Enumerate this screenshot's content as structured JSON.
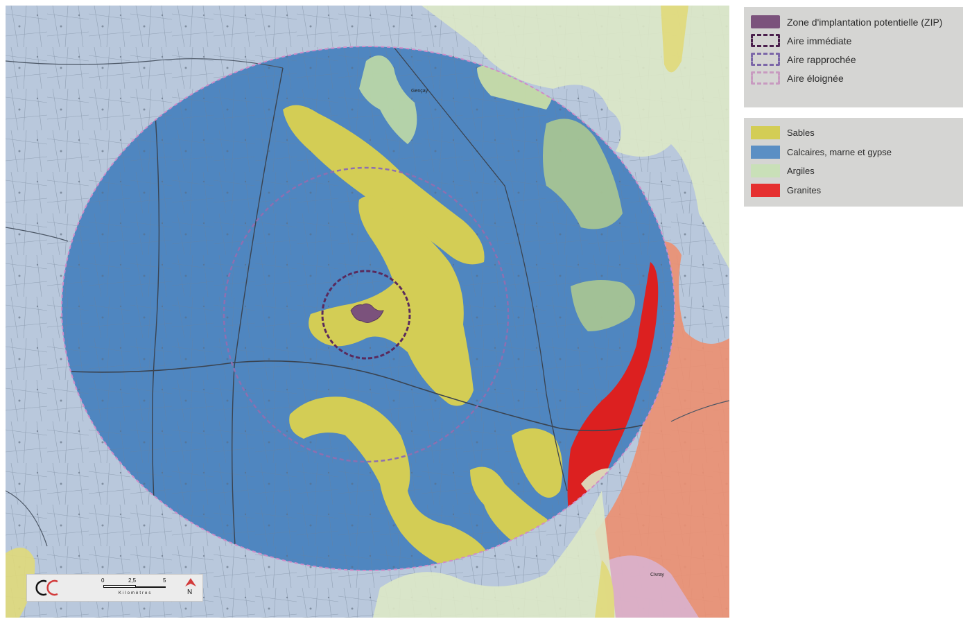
{
  "legend": {
    "study_areas": [
      {
        "label": "Zone d'implantation potentielle (ZIP)",
        "kind": "fill",
        "color": "#7b527c",
        "icon": "zip-swatch"
      },
      {
        "label": "Aire immédiate",
        "kind": "dashed",
        "color": "#4a1f4c",
        "icon": "immediate-area-swatch"
      },
      {
        "label": "Aire rapprochée",
        "kind": "dashed",
        "color": "#7b66a8",
        "icon": "close-area-swatch"
      },
      {
        "label": "Aire éloignée",
        "kind": "dashed",
        "color": "#c89ac0",
        "icon": "distant-area-swatch"
      }
    ],
    "geology": [
      {
        "label": "Sables",
        "color": "#d3cd55"
      },
      {
        "label": "Calcaires, marne et gypse",
        "color": "#5b8fc4"
      },
      {
        "label": "Argiles",
        "color": "#c9e0b8"
      },
      {
        "label": "Granites",
        "color": "#e53030"
      }
    ]
  },
  "scalebar": {
    "ticks": [
      "0",
      "2,5",
      "5"
    ],
    "unit": "Kilomètres",
    "north": "N"
  },
  "map_labels": {
    "town_gencay": "Gençay",
    "town_civray": "Civray"
  },
  "colors": {
    "basemap": "#b7c7dc",
    "limestone": "#4f86c0",
    "sands": "#d3cd55",
    "clays": "#dde8c6",
    "granites": "#dc2020",
    "granite_outer": "#ec8f70"
  }
}
